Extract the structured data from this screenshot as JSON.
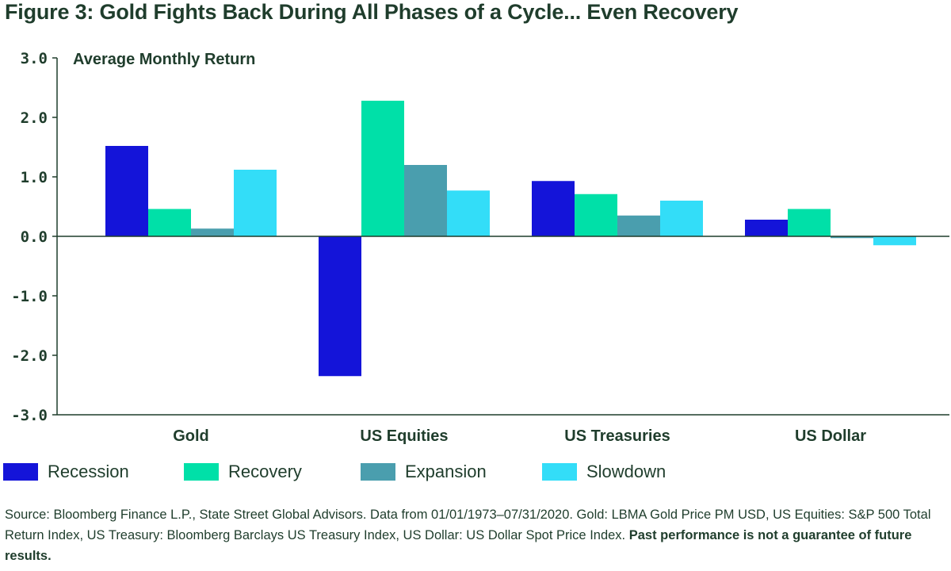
{
  "title": "Figure 3: Gold Fights Back During All Phases of a Cycle... Even Recovery",
  "source_text": "Source: Bloomberg Finance L.P., State Street Global Advisors. Data from 01/01/1973–07/31/2020. Gold: LBMA Gold Price PM USD, US Equities: S&P 500 Total Return Index, US Treasury: Bloomberg Barclays US Treasury Index, US Dollar: US Dollar Spot Price Index.",
  "disclaimer": "Past performance is not a guarantee of future results.",
  "colors": {
    "recession": "#1414d9",
    "recovery": "#00e0a8",
    "expansion": "#4a9eae",
    "slowdown": "#33ddf8",
    "axis": "#1f3d2c"
  },
  "chart_data": {
    "type": "bar",
    "title": "",
    "ylabel": "Average Monthly Return",
    "xlabel": "",
    "ylim": [
      -3.0,
      3.0
    ],
    "yticks": [
      "3.0",
      "2.0",
      "1.0",
      "0.0",
      "-1.0",
      "-2.0",
      "-3.0"
    ],
    "grid": false,
    "legend_position": "bottom",
    "categories": [
      "Gold",
      "US Equities",
      "US Treasuries",
      "US Dollar"
    ],
    "series": [
      {
        "name": "Recession",
        "color": "#1414d9",
        "values": [
          1.52,
          -2.35,
          0.93,
          0.28
        ]
      },
      {
        "name": "Recovery",
        "color": "#00e0a8",
        "values": [
          0.46,
          2.28,
          0.71,
          0.46
        ]
      },
      {
        "name": "Expansion",
        "color": "#4a9eae",
        "values": [
          0.13,
          1.2,
          0.35,
          -0.03
        ]
      },
      {
        "name": "Slowdown",
        "color": "#33ddf8",
        "values": [
          1.12,
          0.77,
          0.6,
          -0.15
        ]
      }
    ]
  }
}
